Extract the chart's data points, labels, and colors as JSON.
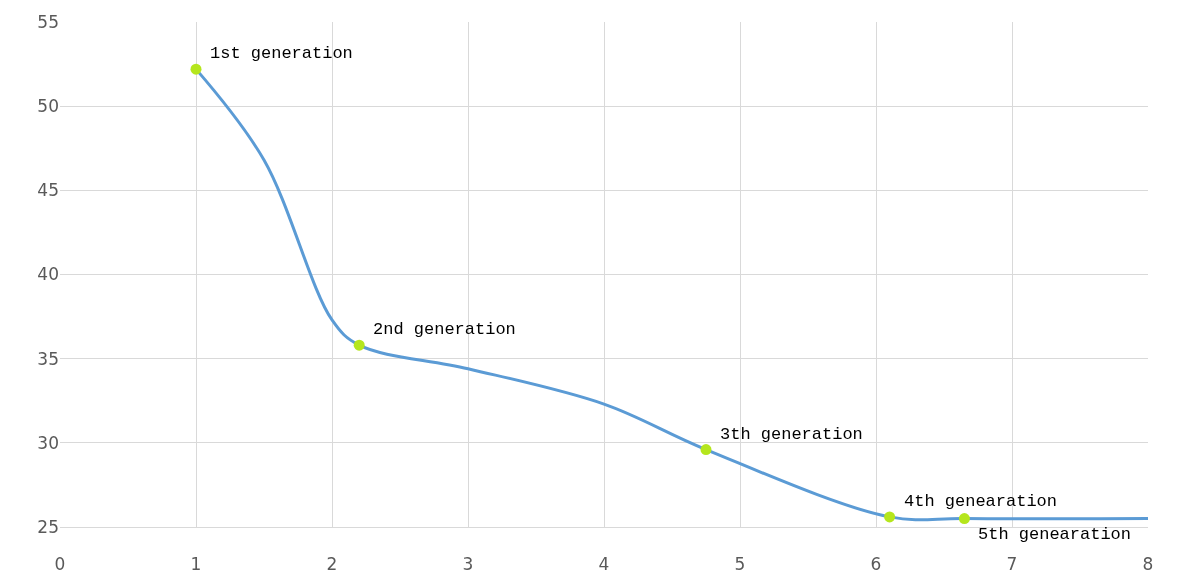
{
  "chart_data": {
    "type": "line",
    "xlim": [
      0,
      8
    ],
    "ylim": [
      25,
      55
    ],
    "xticks": [
      0,
      1,
      2,
      3,
      4,
      5,
      6,
      7,
      8
    ],
    "yticks": [
      25,
      30,
      35,
      40,
      45,
      50,
      55
    ],
    "grid": true,
    "legend": false,
    "series": [
      {
        "marker": "none",
        "color": "#5b9bd5",
        "x": [
          1,
          1.5,
          2,
          2.2,
          3,
          4,
          4.75,
          6.1,
          6.65,
          8
        ],
        "values": [
          52.2,
          46.8,
          37.3,
          35.8,
          34.4,
          32.3,
          29.6,
          25.6,
          25.5,
          25.5
        ]
      },
      {
        "type": "scatter",
        "marker": "circle",
        "color": "#b5e61d",
        "x": [
          1,
          2.2,
          4.75,
          6.1,
          6.65
        ],
        "values": [
          52.2,
          35.8,
          29.6,
          25.6,
          25.5
        ]
      }
    ],
    "annotations": [
      {
        "text": "1st generation",
        "x": 1,
        "y": 52.2
      },
      {
        "text": "2nd generation",
        "x": 2.2,
        "y": 35.8
      },
      {
        "text": "3th generation",
        "x": 4.75,
        "y": 29.6
      },
      {
        "text": "4th genearation",
        "x": 6.1,
        "y": 25.6
      },
      {
        "text": "5th genearation",
        "x": 6.65,
        "y": 25.5
      }
    ]
  }
}
